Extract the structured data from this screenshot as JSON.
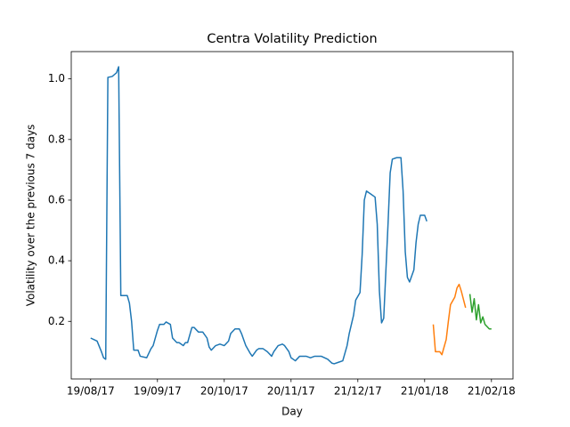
{
  "chart_data": {
    "type": "line",
    "title": "Centra Volatility Prediction",
    "x_label": "Day",
    "y_label": "Volatility over the previous 7 days",
    "xlim": [
      "2017-08-10",
      "2018-03-03"
    ],
    "xticks": [
      {
        "value": "2017-08-19",
        "label": "19/08/17"
      },
      {
        "value": "2017-09-19",
        "label": "19/09/17"
      },
      {
        "value": "2017-10-20",
        "label": "20/10/17"
      },
      {
        "value": "2017-11-20",
        "label": "20/11/17"
      },
      {
        "value": "2017-12-21",
        "label": "21/12/17"
      },
      {
        "value": "2018-01-21",
        "label": "21/01/18"
      },
      {
        "value": "2018-02-21",
        "label": "21/02/18"
      }
    ],
    "ylim": [
      0.01,
      1.09
    ],
    "yticks": [
      0.2,
      0.4,
      0.6,
      0.8,
      {
        "value": 1,
        "label": "1.0"
      }
    ],
    "grid": false,
    "series": [
      {
        "color": "#1f77b4",
        "x": [
          "2017-08-19",
          "2017-08-22",
          "2017-08-24",
          "2017-08-25",
          "2017-08-26",
          "2017-08-27",
          "2017-08-29",
          "2017-08-31",
          "2017-09-01",
          "2017-09-02",
          "2017-09-05",
          "2017-09-06",
          "2017-09-07",
          "2017-09-08",
          "2017-09-10",
          "2017-09-11",
          "2017-09-14",
          "2017-09-16",
          "2017-09-17",
          "2017-09-19",
          "2017-09-20",
          "2017-09-22",
          "2017-09-23",
          "2017-09-25",
          "2017-09-26",
          "2017-09-28",
          "2017-09-29",
          "2017-10-01",
          "2017-10-02",
          "2017-10-03",
          "2017-10-05",
          "2017-10-06",
          "2017-10-08",
          "2017-10-10",
          "2017-10-12",
          "2017-10-13",
          "2017-10-14",
          "2017-10-16",
          "2017-10-18",
          "2017-10-20",
          "2017-10-22",
          "2017-10-23",
          "2017-10-25",
          "2017-10-27",
          "2017-10-28",
          "2017-10-30",
          "2017-11-01",
          "2017-11-02",
          "2017-11-04",
          "2017-11-05",
          "2017-11-07",
          "2017-11-09",
          "2017-11-11",
          "2017-11-12",
          "2017-11-14",
          "2017-11-16",
          "2017-11-17",
          "2017-11-19",
          "2017-11-20",
          "2017-11-22",
          "2017-11-24",
          "2017-11-27",
          "2017-11-29",
          "2017-12-01",
          "2017-12-04",
          "2017-12-07",
          "2017-12-09",
          "2017-12-10",
          "2017-12-12",
          "2017-12-14",
          "2017-12-16",
          "2017-12-17",
          "2017-12-19",
          "2017-12-20",
          "2017-12-22",
          "2017-12-23",
          "2017-12-24",
          "2017-12-25",
          "2017-12-27",
          "2017-12-29",
          "2017-12-30",
          "2017-12-31",
          "2018-01-01",
          "2018-01-02",
          "2018-01-04",
          "2018-01-05",
          "2018-01-06",
          "2018-01-08",
          "2018-01-10",
          "2018-01-11",
          "2018-01-12",
          "2018-01-13",
          "2018-01-14",
          "2018-01-16",
          "2018-01-17",
          "2018-01-18",
          "2018-01-19",
          "2018-01-21",
          "2018-01-22"
        ],
        "values": [
          0.145,
          0.135,
          0.1,
          0.08,
          0.075,
          1.005,
          1.008,
          1.02,
          1.04,
          0.285,
          0.285,
          0.26,
          0.2,
          0.105,
          0.105,
          0.085,
          0.08,
          0.11,
          0.12,
          0.17,
          0.19,
          0.19,
          0.198,
          0.19,
          0.145,
          0.13,
          0.13,
          0.12,
          0.13,
          0.13,
          0.18,
          0.18,
          0.165,
          0.165,
          0.145,
          0.115,
          0.105,
          0.12,
          0.125,
          0.12,
          0.135,
          0.16,
          0.175,
          0.175,
          0.16,
          0.12,
          0.095,
          0.085,
          0.105,
          0.11,
          0.11,
          0.1,
          0.085,
          0.1,
          0.12,
          0.125,
          0.12,
          0.1,
          0.08,
          0.07,
          0.085,
          0.085,
          0.08,
          0.085,
          0.085,
          0.075,
          0.062,
          0.06,
          0.065,
          0.07,
          0.12,
          0.16,
          0.22,
          0.27,
          0.295,
          0.42,
          0.6,
          0.63,
          0.62,
          0.61,
          0.52,
          0.3,
          0.195,
          0.21,
          0.52,
          0.69,
          0.735,
          0.74,
          0.74,
          0.63,
          0.43,
          0.345,
          0.33,
          0.37,
          0.46,
          0.52,
          0.55,
          0.55,
          0.53
        ]
      },
      {
        "color": "#ff7f0e",
        "x": [
          "2018-01-25",
          "2018-01-26",
          "2018-01-28",
          "2018-01-29",
          "2018-01-31",
          "2018-02-01",
          "2018-02-02",
          "2018-02-04",
          "2018-02-05",
          "2018-02-06",
          "2018-02-07",
          "2018-02-09"
        ],
        "values": [
          0.19,
          0.1,
          0.1,
          0.09,
          0.14,
          0.2,
          0.255,
          0.28,
          0.31,
          0.322,
          0.3,
          0.245
        ]
      },
      {
        "color": "#2ca02c",
        "x": [
          "2018-02-11",
          "2018-02-12",
          "2018-02-13",
          "2018-02-14",
          "2018-02-15",
          "2018-02-16",
          "2018-02-17",
          "2018-02-18",
          "2018-02-20",
          "2018-02-21"
        ],
        "values": [
          0.29,
          0.23,
          0.275,
          0.205,
          0.255,
          0.195,
          0.215,
          0.19,
          0.175,
          0.175
        ]
      }
    ]
  }
}
